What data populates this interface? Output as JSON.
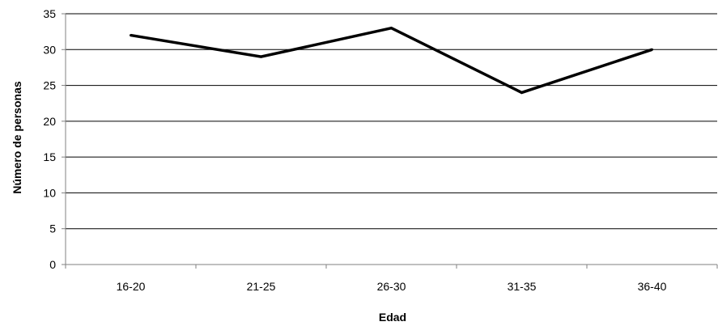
{
  "chart_data": {
    "type": "line",
    "title": "",
    "xlabel": "Edad",
    "ylabel": "Número de personas",
    "categories": [
      "16-20",
      "21-25",
      "26-30",
      "31-35",
      "36-40"
    ],
    "series": [
      {
        "values": [
          32,
          29,
          33,
          24,
          30
        ]
      }
    ],
    "ylim": [
      0,
      35
    ],
    "yticks": [
      0,
      5,
      10,
      15,
      20,
      25,
      30,
      35
    ],
    "grid": true,
    "legend": "none",
    "colors": {
      "line": "#000000",
      "grid": "#000000",
      "axis": "#808080"
    }
  }
}
